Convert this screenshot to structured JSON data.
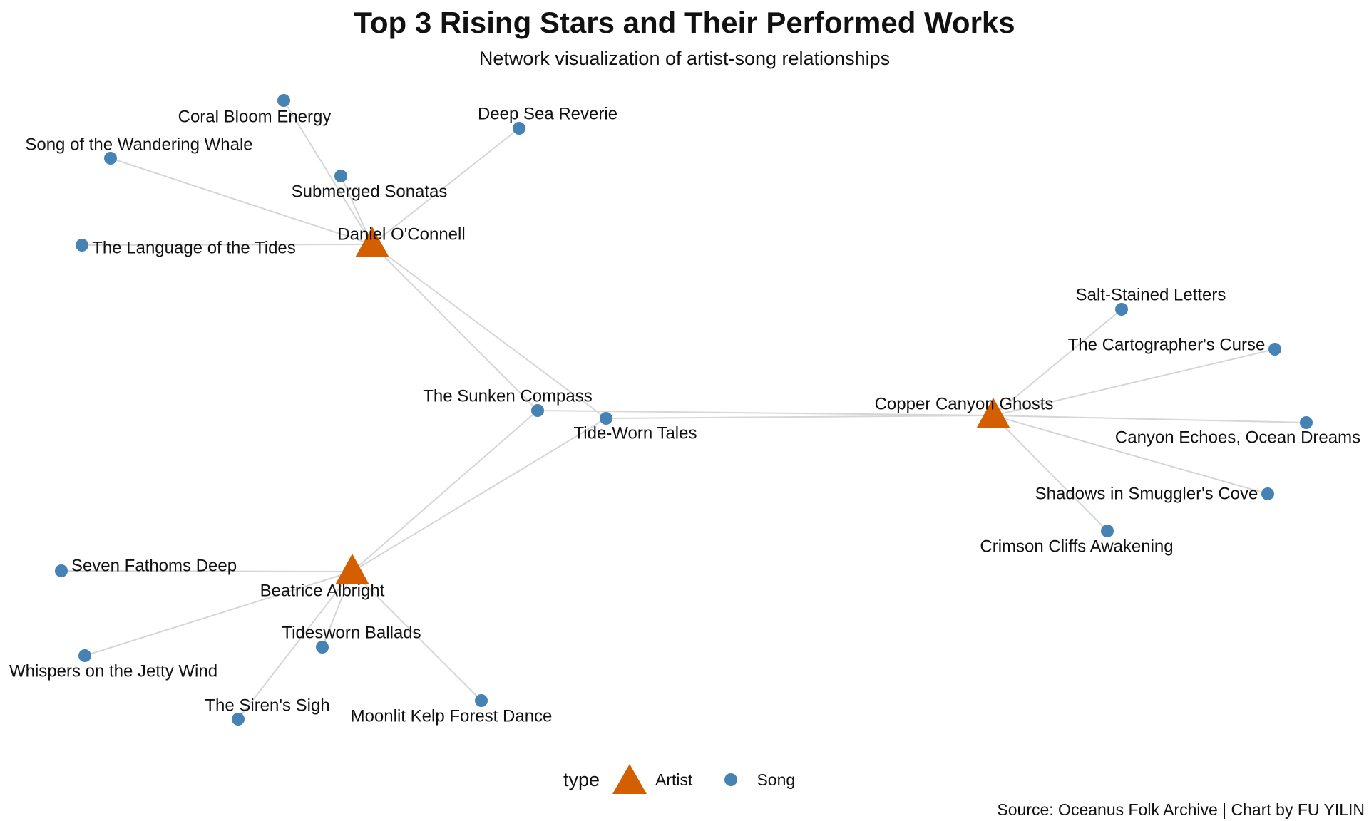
{
  "title": "Top 3 Rising Stars and Their Performed Works",
  "subtitle": "Network visualization of artist-song relationships",
  "caption": "Source: Oceanus Folk Archive | Chart by FU YILIN",
  "legend": {
    "title": "type",
    "items": [
      {
        "label": "Artist",
        "shape": "triangle",
        "color": "#D35F00"
      },
      {
        "label": "Song",
        "shape": "circle",
        "color": "#4682B4"
      }
    ]
  },
  "colors": {
    "artist": "#D35F00",
    "song": "#4682B4",
    "edge": "#d6d6d6"
  },
  "nodes": [
    {
      "id": "daniel",
      "label": "Daniel O'Connell",
      "type": "Artist"
    },
    {
      "id": "copper",
      "label": "Copper Canyon Ghosts",
      "type": "Artist"
    },
    {
      "id": "beatrice",
      "label": "Beatrice Albright",
      "type": "Artist"
    },
    {
      "id": "coral",
      "label": "Coral Bloom Energy",
      "type": "Song"
    },
    {
      "id": "deepsea",
      "label": "Deep Sea Reverie",
      "type": "Song"
    },
    {
      "id": "whale",
      "label": "Song of the Wandering Whale",
      "type": "Song"
    },
    {
      "id": "submerged",
      "label": "Submerged Sonatas",
      "type": "Song"
    },
    {
      "id": "tides",
      "label": "The Language of the Tides",
      "type": "Song"
    },
    {
      "id": "compass",
      "label": "The Sunken Compass",
      "type": "Song"
    },
    {
      "id": "tideworn",
      "label": "Tide-Worn Tales",
      "type": "Song"
    },
    {
      "id": "salt",
      "label": "Salt-Stained Letters",
      "type": "Song"
    },
    {
      "id": "carto",
      "label": "The Cartographer's Curse",
      "type": "Song"
    },
    {
      "id": "canyon",
      "label": "Canyon Echoes, Ocean Dreams",
      "type": "Song"
    },
    {
      "id": "shadows",
      "label": "Shadows in Smuggler's Cove",
      "type": "Song"
    },
    {
      "id": "crimson",
      "label": "Crimson Cliffs Awakening",
      "type": "Song"
    },
    {
      "id": "seven",
      "label": "Seven Fathoms Deep",
      "type": "Song"
    },
    {
      "id": "whispers",
      "label": "Whispers on the Jetty Wind",
      "type": "Song"
    },
    {
      "id": "tidesworn",
      "label": "Tidesworn Ballads",
      "type": "Song"
    },
    {
      "id": "siren",
      "label": "The Siren's Sigh",
      "type": "Song"
    },
    {
      "id": "moonlit",
      "label": "Moonlit Kelp Forest Dance",
      "type": "Song"
    }
  ],
  "edges": [
    [
      "daniel",
      "coral"
    ],
    [
      "daniel",
      "deepsea"
    ],
    [
      "daniel",
      "whale"
    ],
    [
      "daniel",
      "submerged"
    ],
    [
      "daniel",
      "tides"
    ],
    [
      "daniel",
      "compass"
    ],
    [
      "daniel",
      "tideworn"
    ],
    [
      "copper",
      "salt"
    ],
    [
      "copper",
      "carto"
    ],
    [
      "copper",
      "canyon"
    ],
    [
      "copper",
      "shadows"
    ],
    [
      "copper",
      "crimson"
    ],
    [
      "copper",
      "compass"
    ],
    [
      "copper",
      "tideworn"
    ],
    [
      "beatrice",
      "seven"
    ],
    [
      "beatrice",
      "whispers"
    ],
    [
      "beatrice",
      "tidesworn"
    ],
    [
      "beatrice",
      "siren"
    ],
    [
      "beatrice",
      "moonlit"
    ],
    [
      "beatrice",
      "compass"
    ],
    [
      "beatrice",
      "tideworn"
    ]
  ]
}
